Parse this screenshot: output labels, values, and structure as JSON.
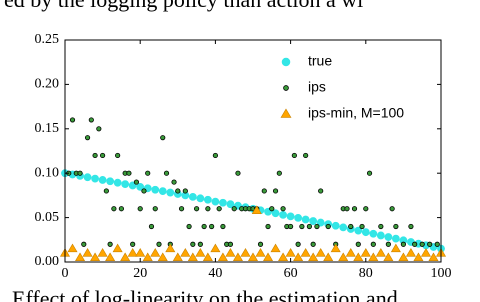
{
  "header_text": "ed by the logging policy than action a wi",
  "caption_text": "Effect of log-linearity on the estimation and",
  "chart_data": {
    "type": "scatter",
    "xlim": [
      0,
      100
    ],
    "ylim": [
      0,
      0.25
    ],
    "xticks": [
      0,
      20,
      40,
      60,
      80,
      100
    ],
    "yticks": [
      {
        "value": 0,
        "label": "0.00"
      },
      {
        "value": 0.05,
        "label": "0.05"
      },
      {
        "value": 0.1,
        "label": "0.10"
      },
      {
        "value": 0.15,
        "label": "0.15"
      },
      {
        "value": 0.2,
        "label": "0.20"
      },
      {
        "value": 0.25,
        "label": "0.25"
      }
    ],
    "legend": "upper right",
    "series": [
      {
        "name": "true",
        "color": "#33e6e6",
        "marker": "circle",
        "x": [
          0,
          2,
          4,
          6,
          8,
          10,
          12,
          14,
          16,
          18,
          20,
          22,
          24,
          26,
          28,
          30,
          32,
          34,
          36,
          38,
          40,
          42,
          44,
          46,
          48,
          50,
          52,
          54,
          56,
          58,
          60,
          62,
          64,
          66,
          68,
          70,
          72,
          74,
          76,
          78,
          80,
          82,
          84,
          86,
          88,
          90,
          92,
          94,
          96,
          98,
          100
        ],
        "values": [
          0.1,
          0.0985,
          0.097,
          0.0955,
          0.0939,
          0.0924,
          0.0909,
          0.0893,
          0.0877,
          0.0862,
          0.0846,
          0.083,
          0.0814,
          0.0798,
          0.0782,
          0.0766,
          0.075,
          0.0733,
          0.0717,
          0.0701,
          0.068,
          0.0667,
          0.0651,
          0.0634,
          0.0617,
          0.06,
          0.0583,
          0.0566,
          0.0549,
          0.0531,
          0.0514,
          0.0497,
          0.0479,
          0.0461,
          0.0444,
          0.0426,
          0.0408,
          0.039,
          0.0372,
          0.0353,
          0.0336,
          0.0318,
          0.0299,
          0.0281,
          0.0263,
          0.0244,
          0.0225,
          0.0206,
          0.0188,
          0.0169,
          0.015
        ]
      },
      {
        "name": "ips",
        "color": "#3a9a3a",
        "marker": "dot",
        "x": [
          1,
          2,
          3,
          4,
          5,
          6,
          7,
          8,
          9,
          10,
          11,
          12,
          13,
          14,
          15,
          16,
          17,
          18,
          19,
          20,
          21,
          22,
          23,
          24,
          25,
          26,
          27,
          28,
          29,
          30,
          31,
          32,
          33,
          34,
          35,
          36,
          37,
          38,
          39,
          40,
          41,
          42,
          43,
          44,
          45,
          46,
          47,
          48,
          49,
          50,
          51,
          52,
          53,
          54,
          55,
          56,
          57,
          58,
          59,
          60,
          61,
          62,
          63,
          64,
          65,
          66,
          67,
          68,
          70,
          72,
          74,
          75,
          76,
          77,
          78,
          79,
          80,
          81,
          82,
          84,
          86,
          87,
          88,
          90,
          92,
          93,
          95,
          97,
          99
        ],
        "values": [
          0.1,
          0.16,
          0.1,
          0.1,
          0.02,
          0.14,
          0.16,
          0.12,
          0.15,
          0.12,
          0.08,
          0.02,
          0.06,
          0.12,
          0.06,
          0.1,
          0.1,
          0.02,
          0.09,
          0.06,
          0.08,
          0.1,
          0.04,
          0.06,
          0.02,
          0.14,
          0.1,
          0.02,
          0.09,
          0.08,
          0.06,
          0.08,
          0.04,
          0.02,
          0.06,
          0.02,
          0.04,
          0.06,
          0.04,
          0.12,
          0.06,
          0.04,
          0.02,
          0.02,
          0.06,
          0.1,
          0.06,
          0.06,
          0.06,
          0.06,
          0.06,
          0.02,
          0.08,
          0.04,
          0.06,
          0.08,
          0.1,
          0.06,
          0.04,
          0.04,
          0.12,
          0.02,
          0.04,
          0.12,
          0.04,
          0.02,
          0.04,
          0.08,
          0.04,
          0.02,
          0.06,
          0.06,
          0.04,
          0.06,
          0.02,
          0.04,
          0.06,
          0.1,
          0.02,
          0.04,
          0.02,
          0.06,
          0.04,
          0.02,
          0.04,
          0.02,
          0.02,
          0.02,
          0.02
        ]
      },
      {
        "name": "ips-min, M=100",
        "color": "#ffa500",
        "marker": "triangle",
        "x": [
          0,
          2,
          4,
          6,
          8,
          10,
          12,
          14,
          16,
          18,
          20,
          22,
          24,
          26,
          28,
          30,
          32,
          34,
          36,
          38,
          40,
          42,
          44,
          46,
          48,
          50,
          52,
          54,
          56,
          58,
          60,
          62,
          64,
          66,
          68,
          70,
          72,
          74,
          76,
          78,
          80,
          82,
          84,
          86,
          88,
          90,
          92,
          94,
          96,
          98,
          100,
          51
        ],
        "values": [
          0.01,
          0.015,
          0.005,
          0.01,
          0.005,
          0.01,
          0.005,
          0.015,
          0.005,
          0.01,
          0.01,
          0.005,
          0.01,
          0.005,
          0.015,
          0.005,
          0.01,
          0.005,
          0.01,
          0.005,
          0.015,
          0.005,
          0.01,
          0.005,
          0.01,
          0.005,
          0.01,
          0.005,
          0.015,
          0.005,
          0.01,
          0.005,
          0.01,
          0.005,
          0.01,
          0.005,
          0.015,
          0.005,
          0.01,
          0.005,
          0.01,
          0.005,
          0.01,
          0.005,
          0.015,
          0.005,
          0.01,
          0.005,
          0.01,
          0.005,
          0.01,
          0.058
        ]
      }
    ]
  }
}
